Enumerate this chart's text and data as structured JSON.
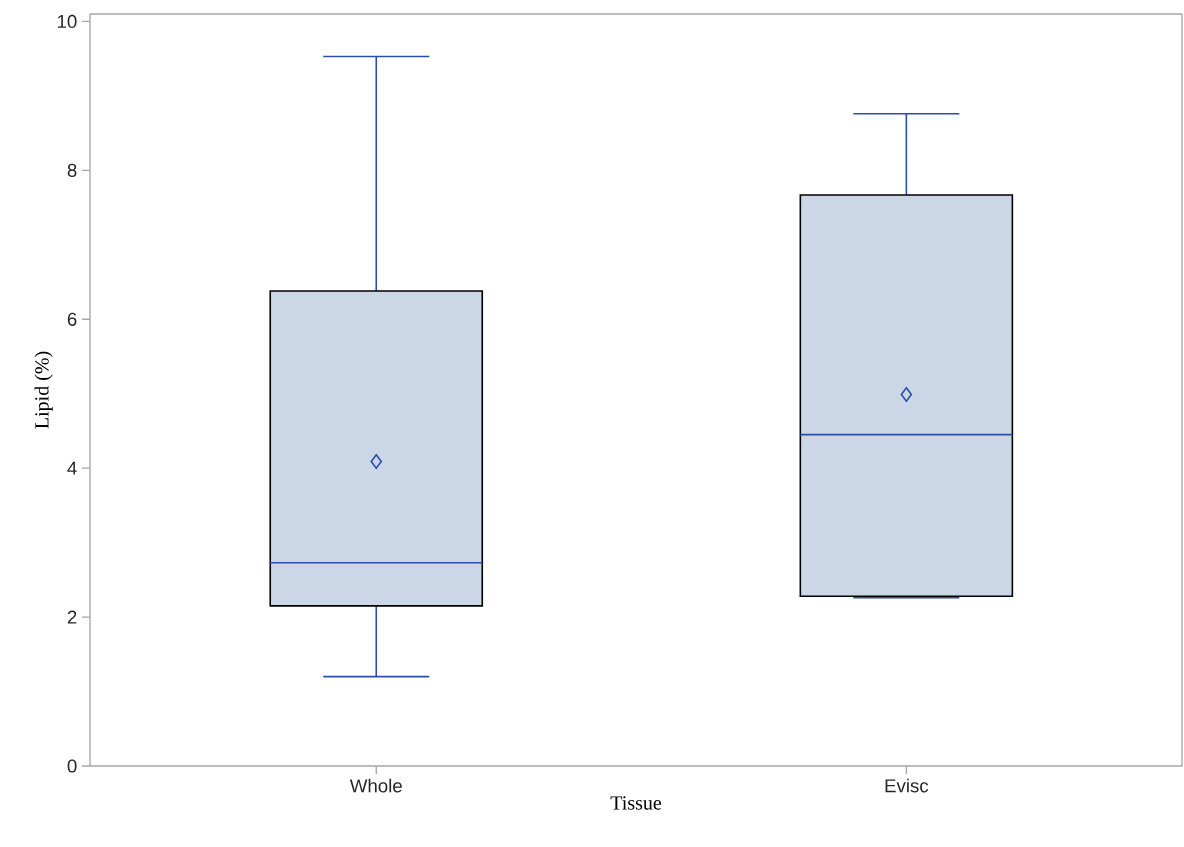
{
  "chart_data": {
    "type": "box",
    "xlabel": "Tissue",
    "ylabel": "Lipid (%)",
    "categories": [
      "Whole",
      "Evisc"
    ],
    "boxes": [
      {
        "low": 1.2,
        "q1": 2.15,
        "median": 2.73,
        "q3": 6.38,
        "high": 9.53,
        "mean": 4.09
      },
      {
        "low": 2.26,
        "q1": 2.28,
        "median": 4.45,
        "q3": 7.67,
        "high": 8.76,
        "mean": 4.99
      }
    ],
    "color": "#cbd6e6",
    "marker": "diamond",
    "ylim": [
      0,
      10.1
    ],
    "yticks": [
      0,
      2,
      4,
      6,
      8,
      10
    ],
    "grid": false
  }
}
